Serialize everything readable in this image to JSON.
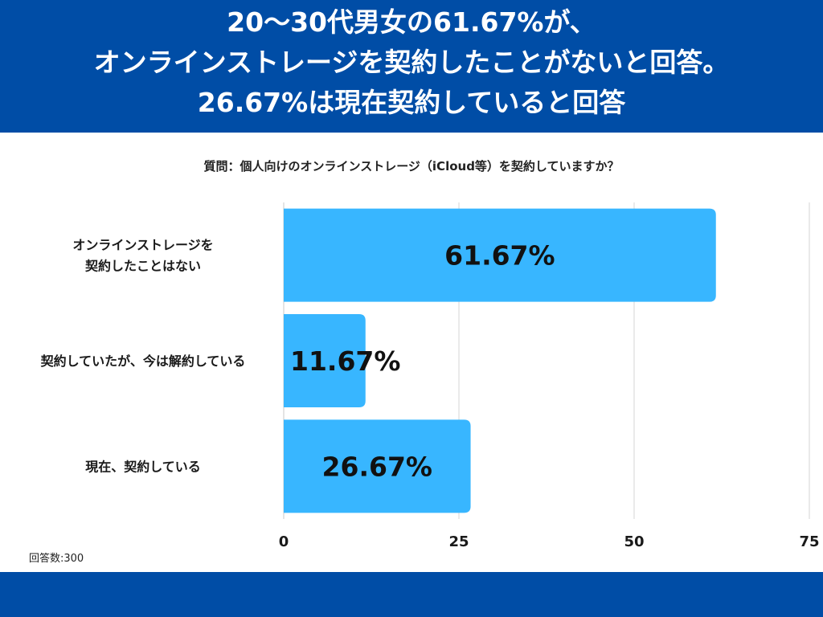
{
  "header": {
    "title_lines": [
      "20〜30代男女の61.67%が、",
      "オンラインストレージを契約したことがないと回答。",
      "26.67%は現在契約していると回答"
    ]
  },
  "question": "質問：個人向けのオンラインストレージ（iCloud等）を契約していますか？",
  "note": "回答数:300",
  "colors": {
    "brand": "#004da6",
    "bar": "#38b6ff",
    "grid": "#d6d6d6"
  },
  "chart_data": {
    "type": "bar",
    "orientation": "horizontal",
    "categories": [
      "オンラインストレージを\n契約したことはない",
      "契約していたが、今は解約している",
      "現在、契約している"
    ],
    "values": [
      61.67,
      11.67,
      26.67
    ],
    "data_labels": [
      "61.67%",
      "11.67%",
      "26.67%"
    ],
    "xlim": [
      0,
      75
    ],
    "xticks": [
      0,
      25,
      50,
      75
    ],
    "grid": true
  }
}
